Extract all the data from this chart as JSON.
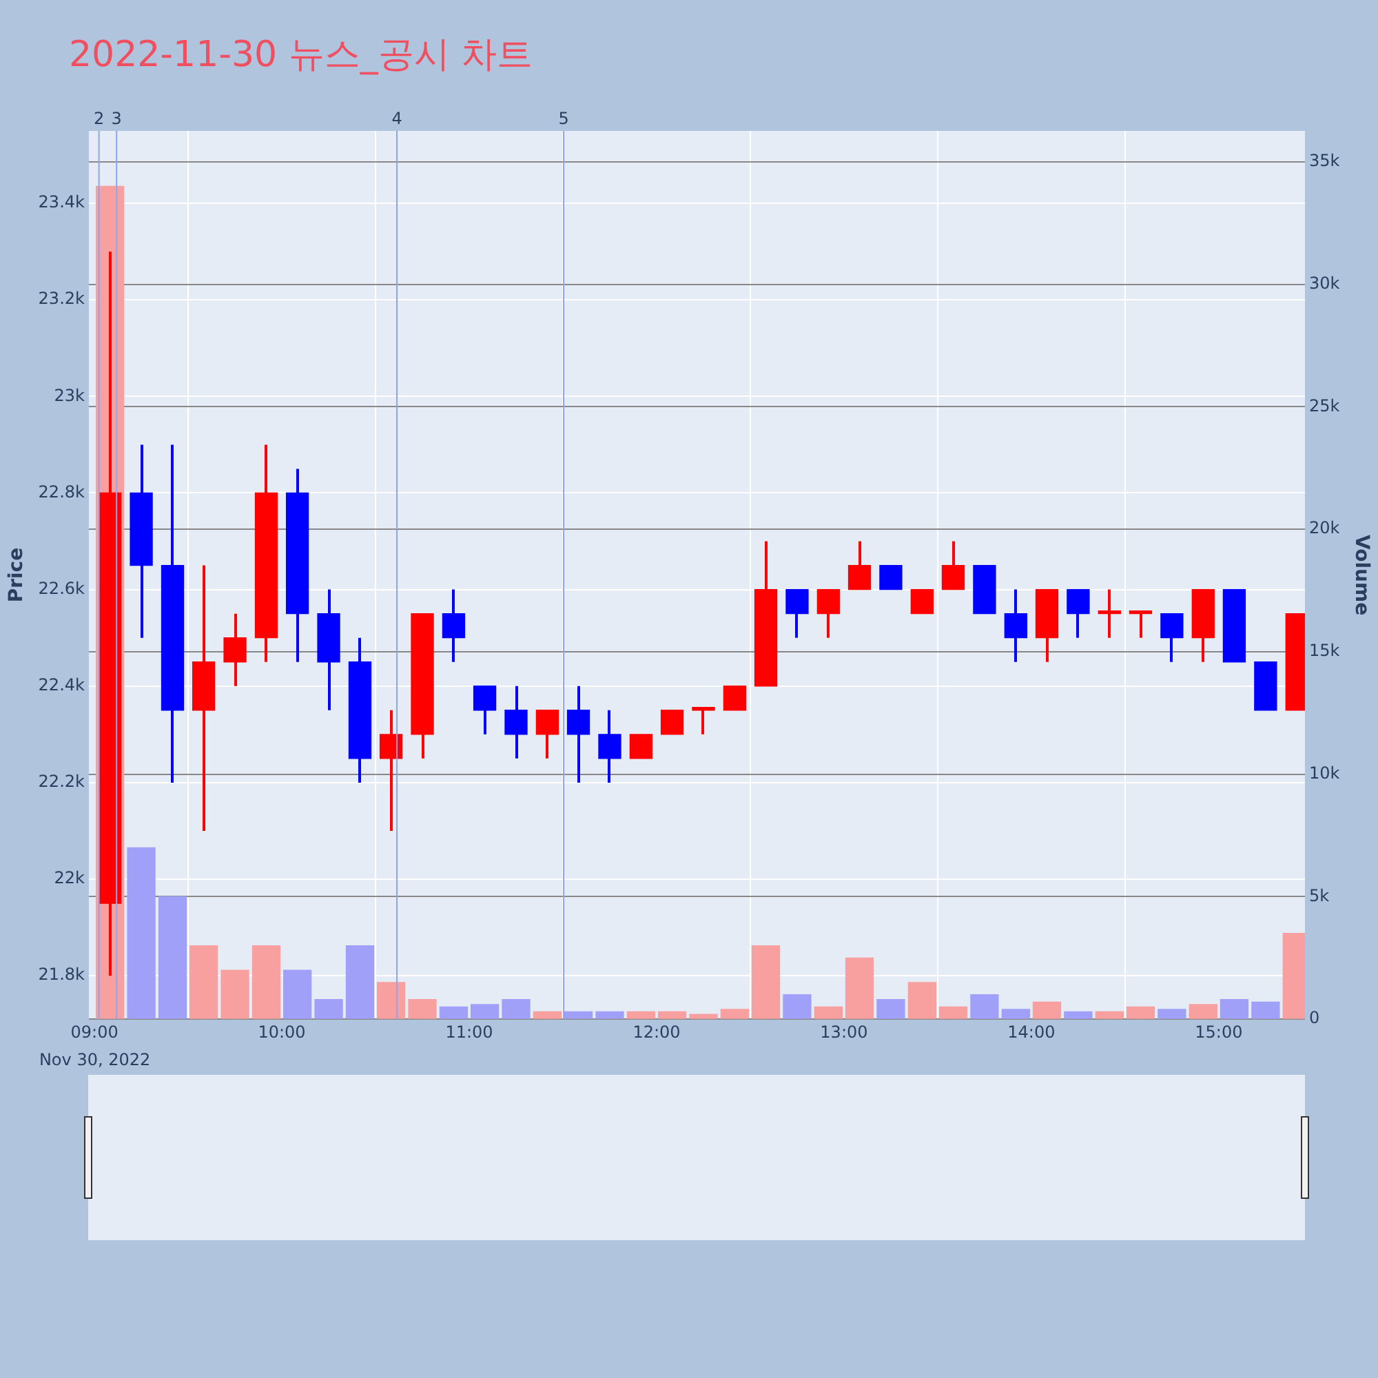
{
  "chart_data": {
    "type": "candlestick",
    "title": "2022-11-30 뉴스_공시 차트",
    "ylabel": "Price",
    "y2label": "Volume",
    "annotations": [
      "Nov 30, 2022",
      {
        "text": "2",
        "x": 9.024,
        "y": 23550
      },
      {
        "text": "3",
        "x": 9.118,
        "y": 23550
      },
      {
        "text": "4",
        "x": 10.614,
        "y": 23550
      },
      {
        "text": "5",
        "x": 11.504,
        "y": 23550
      }
    ],
    "grid": true,
    "x": [
      9.083,
      9.25,
      9.417,
      9.583,
      9.75,
      9.917,
      10.083,
      10.25,
      10.417,
      10.583,
      10.75,
      10.917,
      11.083,
      11.25,
      11.417,
      11.583,
      11.75,
      11.917,
      12.083,
      12.25,
      12.417,
      12.583,
      12.75,
      12.917,
      13.083,
      13.25,
      13.417,
      13.583,
      13.75,
      13.917,
      14.083,
      14.25,
      14.417,
      14.583,
      14.75,
      14.917,
      15.083,
      15.25,
      15.417
    ],
    "xlim": [
      8.97,
      15.46
    ],
    "xticks": [
      {
        "value": 9,
        "label": "09:00"
      },
      {
        "value": 10,
        "label": "10:00"
      },
      {
        "value": 11,
        "label": "11:00"
      },
      {
        "value": 12,
        "label": "12:00"
      },
      {
        "value": 13,
        "label": "13:00"
      },
      {
        "value": 14,
        "label": "14:00"
      },
      {
        "value": 15,
        "label": "15:00"
      }
    ],
    "ylim": [
      21710,
      23550
    ],
    "yticks": [
      {
        "value": 21800,
        "label": "21.8k"
      },
      {
        "value": 22000,
        "label": "22k"
      },
      {
        "value": 22200,
        "label": "22.2k"
      },
      {
        "value": 22400,
        "label": "22.4k"
      },
      {
        "value": 22600,
        "label": "22.6k"
      },
      {
        "value": 22800,
        "label": "22.8k"
      },
      {
        "value": 23000,
        "label": "23k"
      },
      {
        "value": 23200,
        "label": "23.2k"
      },
      {
        "value": 23400,
        "label": "23.4k"
      }
    ],
    "y2lim": [
      0,
      36260
    ],
    "y2ticks": [
      0,
      {
        "value": 5000,
        "label": "5k"
      },
      {
        "value": 10000,
        "label": "10k"
      },
      {
        "value": 15000,
        "label": "15k"
      },
      {
        "value": 20000,
        "label": "20k"
      },
      {
        "value": 25000,
        "label": "25k"
      },
      {
        "value": 30000,
        "label": "30k"
      },
      {
        "value": 35000,
        "label": "35k"
      }
    ],
    "ref_lines": [
      {
        "axis": "x",
        "value": 9.024,
        "color": "#8fa3f0"
      },
      {
        "axis": "x",
        "value": 9.118,
        "color": "#8fa3f0"
      },
      {
        "axis": "x",
        "value": 10.614,
        "color": "#8fa3f0"
      },
      {
        "axis": "x",
        "value": 11.504,
        "color": "#8fa3f0"
      }
    ],
    "series": [
      {
        "ohlc": [
          [
            21950,
            23300,
            21800,
            22800
          ],
          [
            22800,
            22900,
            22500,
            22650
          ],
          [
            22650,
            22900,
            22200,
            22350
          ],
          [
            22350,
            22650,
            22100,
            22450
          ],
          [
            22450,
            22550,
            22400,
            22500
          ],
          [
            22500,
            22900,
            22450,
            22800
          ],
          [
            22800,
            22850,
            22450,
            22550
          ],
          [
            22550,
            22600,
            22350,
            22450
          ],
          [
            22450,
            22500,
            22200,
            22250
          ],
          [
            22250,
            22350,
            22100,
            22300
          ],
          [
            22300,
            22550,
            22250,
            22550
          ],
          [
            22550,
            22600,
            22450,
            22500
          ],
          [
            22400,
            22400,
            22300,
            22350
          ],
          [
            22350,
            22400,
            22250,
            22300
          ],
          [
            22300,
            22350,
            22250,
            22350
          ],
          [
            22350,
            22400,
            22200,
            22300
          ],
          [
            22300,
            22350,
            22200,
            22250
          ],
          [
            22250,
            22300,
            22250,
            22300
          ],
          [
            22300,
            22350,
            22300,
            22350
          ],
          [
            22350,
            22350,
            22300,
            22350
          ],
          [
            22350,
            22400,
            22350,
            22400
          ],
          [
            22400,
            22700,
            22400,
            22600
          ],
          [
            22600,
            22600,
            22500,
            22550
          ],
          [
            22550,
            22600,
            22500,
            22600
          ],
          [
            22600,
            22700,
            22600,
            22650
          ],
          [
            22650,
            22650,
            22600,
            22600
          ],
          [
            22550,
            22600,
            22550,
            22600
          ],
          [
            22600,
            22700,
            22600,
            22650
          ],
          [
            22650,
            22650,
            22550,
            22550
          ],
          [
            22550,
            22600,
            22450,
            22500
          ],
          [
            22500,
            22600,
            22450,
            22600
          ],
          [
            22600,
            22600,
            22500,
            22550
          ],
          [
            22550,
            22600,
            22500,
            22550
          ],
          [
            22550,
            22550,
            22500,
            22550
          ],
          [
            22550,
            22550,
            22450,
            22500
          ],
          [
            22500,
            22600,
            22450,
            22600
          ],
          [
            22600,
            22600,
            22450,
            22450
          ],
          [
            22450,
            22450,
            22350,
            22350
          ],
          [
            22350,
            22550,
            22350,
            22550
          ]
        ],
        "colors": [
          "#ff0000",
          "#0000ff",
          "#0000ff",
          "#ff0000",
          "#ff0000",
          "#ff0000",
          "#0000ff",
          "#0000ff",
          "#0000ff",
          "#ff0000",
          "#ff0000",
          "#0000ff",
          "#0000ff",
          "#0000ff",
          "#ff0000",
          "#0000ff",
          "#0000ff",
          "#ff0000",
          "#ff0000",
          "#ff0000",
          "#ff0000",
          "#ff0000",
          "#0000ff",
          "#ff0000",
          "#ff0000",
          "#0000ff",
          "#ff0000",
          "#ff0000",
          "#0000ff",
          "#0000ff",
          "#ff0000",
          "#0000ff",
          "#ff0000",
          "#ff0000",
          "#0000ff",
          "#ff0000",
          "#0000ff",
          "#0000ff",
          "#ff0000"
        ]
      },
      {
        "type": "bar",
        "axis": "y2",
        "values": [
          34000,
          7000,
          5000,
          3000,
          2000,
          3000,
          2000,
          800,
          3000,
          1500,
          800,
          500,
          600,
          800,
          300,
          300,
          300,
          300,
          300,
          200,
          400,
          3000,
          1000,
          500,
          2500,
          800,
          1500,
          500,
          1000,
          400,
          700,
          300,
          300,
          500,
          400,
          600,
          800,
          700,
          3500
        ],
        "colors": [
          "#f8a0a0",
          "#a0a0f8",
          "#a0a0f8",
          "#f8a0a0",
          "#f8a0a0",
          "#f8a0a0",
          "#a0a0f8",
          "#a0a0f8",
          "#a0a0f8",
          "#f8a0a0",
          "#f8a0a0",
          "#a0a0f8",
          "#a0a0f8",
          "#a0a0f8",
          "#f8a0a0",
          "#a0a0f8",
          "#a0a0f8",
          "#f8a0a0",
          "#f8a0a0",
          "#f8a0a0",
          "#f8a0a0",
          "#f8a0a0",
          "#a0a0f8",
          "#f8a0a0",
          "#f8a0a0",
          "#a0a0f8",
          "#f8a0a0",
          "#f8a0a0",
          "#a0a0f8",
          "#a0a0f8",
          "#f8a0a0",
          "#a0a0f8",
          "#f8a0a0",
          "#f8a0a0",
          "#a0a0f8",
          "#f8a0a0",
          "#a0a0f8",
          "#a0a0f8",
          "#f8a0a0"
        ]
      }
    ]
  }
}
